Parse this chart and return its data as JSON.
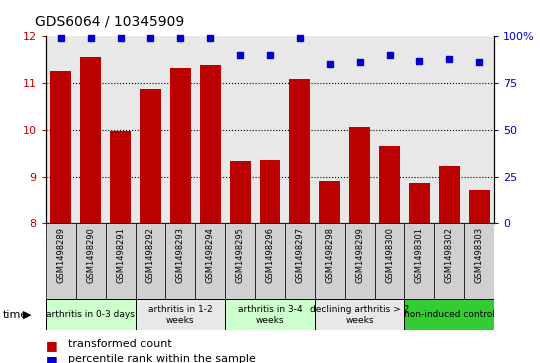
{
  "title": "GDS6064 / 10345909",
  "samples": [
    "GSM1498289",
    "GSM1498290",
    "GSM1498291",
    "GSM1498292",
    "GSM1498293",
    "GSM1498294",
    "GSM1498295",
    "GSM1498296",
    "GSM1498297",
    "GSM1498298",
    "GSM1498299",
    "GSM1498300",
    "GSM1498301",
    "GSM1498302",
    "GSM1498303"
  ],
  "bar_values": [
    11.25,
    11.55,
    9.98,
    10.88,
    11.33,
    11.38,
    9.33,
    9.36,
    11.09,
    8.91,
    10.05,
    9.65,
    8.87,
    9.22,
    8.72
  ],
  "percentile_values": [
    99,
    99,
    99,
    99,
    99,
    99,
    90,
    90,
    99,
    85,
    86,
    90,
    87,
    88,
    86
  ],
  "bar_color": "#bb0000",
  "percentile_color": "#0000cc",
  "ylim_left": [
    8,
    12
  ],
  "ylim_right": [
    0,
    100
  ],
  "yticks_left": [
    8,
    9,
    10,
    11,
    12
  ],
  "yticks_right": [
    0,
    25,
    50,
    75,
    100
  ],
  "groups": [
    {
      "label": "arthritis in 0-3 days",
      "start": 0,
      "end": 3,
      "color": "#ccffcc"
    },
    {
      "label": "arthritis in 1-2\nweeks",
      "start": 3,
      "end": 6,
      "color": "#e8e8e8"
    },
    {
      "label": "arthritis in 3-4\nweeks",
      "start": 6,
      "end": 9,
      "color": "#ccffcc"
    },
    {
      "label": "declining arthritis > 2\nweeks",
      "start": 9,
      "end": 12,
      "color": "#e8e8e8"
    },
    {
      "label": "non-induced control",
      "start": 12,
      "end": 15,
      "color": "#33cc33"
    }
  ],
  "legend_red_label": "transformed count",
  "legend_blue_label": "percentile rank within the sample",
  "plot_bg": "#e8e8e8",
  "xticklabel_bg": "#d0d0d0"
}
